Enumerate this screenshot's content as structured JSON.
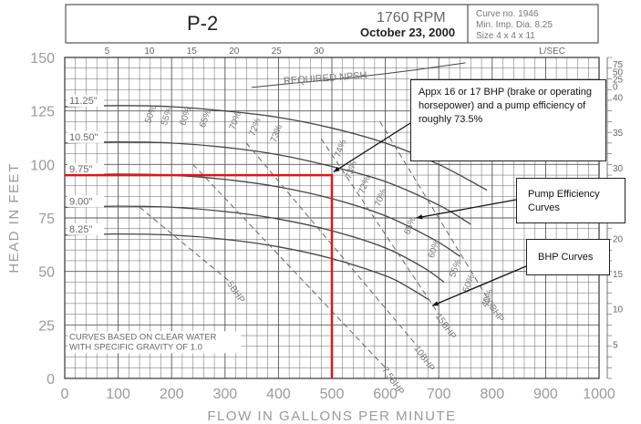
{
  "chart_data": {
    "type": "line",
    "title": "P-2",
    "speed": "1760 RPM",
    "date": "October 23, 2000",
    "curve_info": [
      "Curve no. 1946",
      "Min. Imp. Dia. 8.25",
      "Size 4 x 4 x 11"
    ],
    "xlabel": "FLOW IN GALLONS PER MINUTE",
    "ylabel": "HEAD IN FEET",
    "xlim": [
      0,
      1000
    ],
    "ylim": [
      0,
      150
    ],
    "x_ticks": [
      "0",
      "100",
      "200",
      "300",
      "400",
      "500",
      "600",
      "700",
      "800",
      "900",
      "1000"
    ],
    "y_ticks": [
      "0",
      "25",
      "50",
      "75",
      "100",
      "125",
      "150"
    ],
    "top_axis": {
      "unit": "L/SEC",
      "ticks": [
        {
          "label": "5",
          "flow": 79.25
        },
        {
          "label": "10",
          "flow": 158.5
        },
        {
          "label": "15",
          "flow": 237.75
        },
        {
          "label": "20",
          "flow": 317
        },
        {
          "label": "25",
          "flow": 396.25
        },
        {
          "label": "30",
          "flow": 475.5
        }
      ]
    },
    "right_axis": {
      "ticks": [
        {
          "label": "75",
          "head": 147
        },
        {
          "label": "50",
          "head": 143.5
        },
        {
          "label": "25",
          "head": 140
        },
        {
          "label": "0",
          "head": 136.5
        },
        {
          "label": "40",
          "head": 131.5
        },
        {
          "label": "35",
          "head": 115
        },
        {
          "label": "30",
          "head": 98.5
        },
        {
          "label": "25",
          "head": 82
        },
        {
          "label": "20",
          "head": 65.5
        },
        {
          "label": "15",
          "head": 49
        },
        {
          "label": "10",
          "head": 32.5
        },
        {
          "label": "5",
          "head": 16
        }
      ]
    },
    "impeller_curves": [
      {
        "name": "11.25\"",
        "x": [
          0,
          100,
          200,
          300,
          400,
          500,
          600,
          700,
          790
        ],
        "y": [
          127,
          127.5,
          127,
          125,
          122,
          117,
          110,
          100,
          88
        ]
      },
      {
        "name": "10.50\"",
        "x": [
          0,
          100,
          200,
          300,
          400,
          500,
          600,
          700,
          760
        ],
        "y": [
          110,
          110.5,
          110,
          108,
          104.5,
          99,
          92,
          81,
          72
        ]
      },
      {
        "name": "9.75\"",
        "x": [
          0,
          100,
          200,
          300,
          400,
          500,
          600,
          690,
          740
        ],
        "y": [
          95,
          95.5,
          95,
          93,
          89.5,
          84,
          76,
          65,
          57
        ]
      },
      {
        "name": "9.00\"",
        "x": [
          0,
          100,
          200,
          300,
          400,
          500,
          600,
          670,
          710
        ],
        "y": [
          80,
          80.5,
          80,
          78,
          74.5,
          69,
          61,
          52,
          45
        ]
      },
      {
        "name": "8.25\"",
        "x": [
          0,
          100,
          200,
          300,
          400,
          500,
          600,
          640,
          680
        ],
        "y": [
          67,
          67.5,
          67,
          65,
          61.5,
          56,
          48,
          43,
          37
        ]
      }
    ],
    "npsh_curve": {
      "name": "REQUIRED NPSH",
      "x": [
        350,
        450,
        550,
        650,
        750
      ],
      "y": [
        136,
        138.5,
        141,
        144,
        147.5
      ]
    },
    "efficiency_labels": [
      {
        "label": "50%",
        "x": 160,
        "y": 119
      },
      {
        "label": "55%",
        "x": 190,
        "y": 118
      },
      {
        "label": "60%",
        "x": 225,
        "y": 118
      },
      {
        "label": "65%",
        "x": 262,
        "y": 117
      },
      {
        "label": "70%",
        "x": 318,
        "y": 116
      },
      {
        "label": "72%",
        "x": 355,
        "y": 113
      },
      {
        "label": "73%",
        "x": 395,
        "y": 110
      },
      {
        "label": "74%",
        "x": 515,
        "y": 103
      },
      {
        "label": "73%",
        "x": 535,
        "y": 93
      },
      {
        "label": "72%",
        "x": 560,
        "y": 86
      },
      {
        "label": "70%",
        "x": 590,
        "y": 80
      },
      {
        "label": "65%",
        "x": 645,
        "y": 67
      },
      {
        "label": "60%",
        "x": 690,
        "y": 56
      },
      {
        "label": "55%",
        "x": 730,
        "y": 47
      },
      {
        "label": "50%",
        "x": 755,
        "y": 40
      },
      {
        "label": "40%",
        "x": 790,
        "y": 33
      }
    ],
    "bhp_curves": [
      {
        "name": "5BHP",
        "x": [
          140,
          310
        ],
        "y": [
          80,
          45
        ]
      },
      {
        "name": "7.5BHP",
        "x": [
          240,
          600
        ],
        "y": [
          100,
          5
        ]
      },
      {
        "name": "10BHP",
        "x": [
          340,
          660
        ],
        "y": [
          110,
          15
        ]
      },
      {
        "name": "15BHP",
        "x": [
          480,
          700
        ],
        "y": [
          112,
          30
        ]
      },
      {
        "name": "20BHP",
        "x": [
          590,
          790
        ],
        "y": [
          120,
          38
        ]
      }
    ],
    "operating_point": {
      "flow": 500,
      "head": 95
    },
    "note": [
      "CURVES BASED ON CLEAR WATER",
      "WITH SPECIFIC GRAVITY OF 1.0"
    ]
  },
  "callouts": {
    "operating_point_text": "Appx 16 or 17 BHP (brake or operating horsepower) and a pump efficiency of roughly 73.5%",
    "efficiency_text": "Pump Efficiency Curves",
    "bhp_text": "BHP Curves"
  },
  "colors": {
    "grid": "#555555",
    "curve": "#444444",
    "highlight": "#e0141e",
    "axis_text": "#9a9a9a"
  }
}
